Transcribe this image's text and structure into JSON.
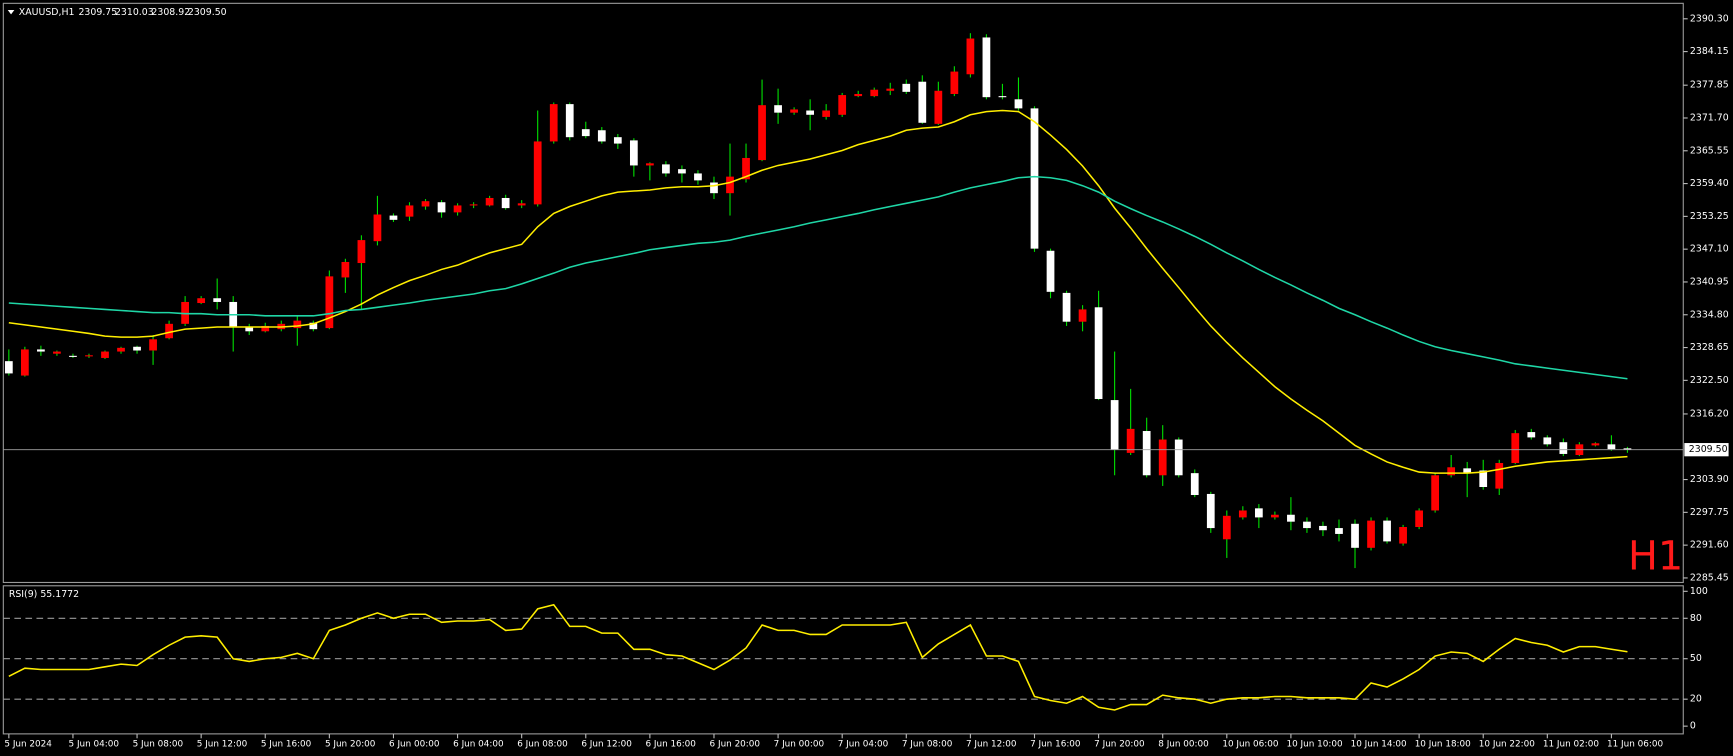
{
  "chart_data": [
    {
      "type": "candlestick",
      "title": "XAUUSD,H1",
      "header_values": [
        "2309.75",
        "2310.03",
        "2308.92",
        "2309.50"
      ],
      "badge": "H1",
      "categories": [
        "5 Jun 2024",
        null,
        null,
        null,
        "5 Jun 04:00",
        null,
        null,
        null,
        "5 Jun 08:00",
        null,
        null,
        null,
        "5 Jun 12:00",
        null,
        null,
        null,
        "5 Jun 16:00",
        null,
        null,
        null,
        "5 Jun 20:00",
        null,
        null,
        null,
        "6 Jun 00:00",
        null,
        null,
        null,
        "6 Jun 04:00",
        null,
        null,
        null,
        "6 Jun 08:00",
        null,
        null,
        null,
        "6 Jun 12:00",
        null,
        null,
        null,
        "6 Jun 16:00",
        null,
        null,
        null,
        "6 Jun 20:00",
        null,
        null,
        null,
        "7 Jun 00:00",
        null,
        null,
        null,
        "7 Jun 04:00",
        null,
        null,
        null,
        "7 Jun 08:00",
        null,
        null,
        null,
        "7 Jun 12:00",
        null,
        null,
        null,
        "7 Jun 16:00",
        null,
        null,
        null,
        "7 Jun 20:00",
        null,
        null,
        null,
        "8 Jun 00:00",
        null,
        null,
        null,
        "10 Jun 06:00",
        null,
        null,
        null,
        "10 Jun 10:00",
        null,
        null,
        null,
        "10 Jun 14:00",
        null,
        null,
        null,
        "10 Jun 18:00",
        null,
        null,
        null,
        "10 Jun 22:00",
        null,
        null,
        null,
        "11 Jun 02:00",
        null,
        null,
        null,
        "11 Jun 06:00",
        null
      ],
      "open": [
        2326.1,
        2323.4,
        2328.3,
        2327.5,
        2327.1,
        2327.1,
        2326.7,
        2327.9,
        2328.8,
        2328.1,
        2330.4,
        2333.1,
        2337.0,
        2337.9,
        2337.2,
        2332.5,
        2331.7,
        2332.1,
        2332.3,
        2333.3,
        2332.3,
        2341.8,
        2344.5,
        2348.6,
        2353.4,
        2353.2,
        2355.1,
        2355.9,
        2354.0,
        2355.3,
        2355.3,
        2356.7,
        2355.3,
        2355.5,
        2367.3,
        2374.3,
        2369.6,
        2369.4,
        2368.1,
        2367.5,
        2362.8,
        2363.0,
        2362.1,
        2361.3,
        2359.6,
        2357.6,
        2360.2,
        2363.8,
        2374.1,
        2372.7,
        2373.1,
        2371.9,
        2372.3,
        2375.8,
        2375.8,
        2376.8,
        2378.1,
        2378.5,
        2370.6,
        2376.2,
        2379.9,
        2386.8,
        2375.8,
        2375.2,
        2373.5,
        2346.8,
        2338.9,
        2333.5,
        2336.2,
        2318.8,
        2308.9,
        2313.0,
        2304.7,
        2311.4,
        2305.1,
        2301.2,
        2292.7,
        2296.8,
        2298.5,
        2296.8,
        2297.3,
        2296.0,
        2295.2,
        2294.8,
        2295.6,
        2291.1,
        2296.2,
        2291.9,
        2295.0,
        2298.1,
        2304.7,
        2306.0,
        2305.6,
        2302.2,
        2307.0,
        2312.8,
        2311.8,
        2310.9,
        2308.5,
        2310.3,
        2310.5,
        2309.75
      ],
      "high": [
        2328.3,
        2328.8,
        2329.0,
        2328.1,
        2327.5,
        2327.5,
        2328.1,
        2328.8,
        2329.0,
        2331.0,
        2333.7,
        2338.3,
        2338.3,
        2341.6,
        2338.3,
        2333.1,
        2333.3,
        2333.7,
        2334.7,
        2333.7,
        2343.1,
        2345.3,
        2349.7,
        2357.1,
        2353.8,
        2355.9,
        2356.5,
        2356.3,
        2355.7,
        2355.9,
        2357.1,
        2357.3,
        2356.3,
        2373.1,
        2374.6,
        2374.6,
        2371.0,
        2370.0,
        2368.7,
        2367.9,
        2363.4,
        2363.6,
        2362.8,
        2361.9,
        2360.7,
        2366.9,
        2366.9,
        2378.9,
        2377.2,
        2373.7,
        2375.2,
        2374.3,
        2376.4,
        2376.8,
        2377.4,
        2378.3,
        2378.9,
        2379.7,
        2378.5,
        2381.4,
        2387.6,
        2387.4,
        2378.1,
        2379.3,
        2373.9,
        2347.2,
        2339.3,
        2336.6,
        2339.3,
        2327.9,
        2320.9,
        2315.5,
        2314.1,
        2311.8,
        2305.8,
        2301.6,
        2298.1,
        2298.9,
        2299.3,
        2297.9,
        2300.6,
        2296.8,
        2296.0,
        2296.4,
        2296.4,
        2296.8,
        2296.8,
        2295.4,
        2298.5,
        2305.1,
        2308.5,
        2307.2,
        2307.6,
        2307.6,
        2313.2,
        2313.4,
        2312.2,
        2311.6,
        2310.9,
        2310.9,
        2312.2,
        2310.03
      ],
      "low": [
        2323.4,
        2323.2,
        2327.1,
        2327.1,
        2326.7,
        2326.7,
        2326.5,
        2327.5,
        2327.5,
        2325.4,
        2330.2,
        2332.7,
        2336.8,
        2335.8,
        2327.9,
        2331.0,
        2331.5,
        2331.7,
        2329.0,
        2331.7,
        2332.1,
        2338.9,
        2335.8,
        2347.8,
        2352.2,
        2352.4,
        2354.5,
        2353.0,
        2353.4,
        2354.8,
        2355.1,
        2354.5,
        2354.8,
        2355.1,
        2366.9,
        2367.5,
        2367.9,
        2366.9,
        2365.9,
        2360.7,
        2360.0,
        2360.7,
        2359.6,
        2359.2,
        2356.5,
        2353.4,
        2359.6,
        2363.6,
        2370.6,
        2372.3,
        2369.4,
        2371.4,
        2371.9,
        2375.6,
        2375.6,
        2376.0,
        2376.2,
        2370.6,
        2370.4,
        2375.8,
        2379.3,
        2375.2,
        2375.2,
        2373.1,
        2346.6,
        2337.9,
        2332.7,
        2331.7,
        2318.8,
        2304.7,
        2308.5,
        2304.3,
        2302.7,
        2304.3,
        2300.6,
        2293.9,
        2289.2,
        2296.4,
        2294.8,
        2296.4,
        2294.4,
        2293.9,
        2293.3,
        2292.3,
        2287.3,
        2290.6,
        2291.9,
        2291.5,
        2294.6,
        2297.7,
        2304.3,
        2300.6,
        2302.0,
        2301.0,
        2306.8,
        2311.4,
        2310.1,
        2308.3,
        2308.3,
        2310.1,
        2309.3,
        2308.92
      ],
      "close": [
        2323.8,
        2328.3,
        2327.9,
        2327.9,
        2326.9,
        2327.2,
        2327.9,
        2328.6,
        2328.1,
        2330.2,
        2333.1,
        2337.2,
        2337.9,
        2337.2,
        2332.5,
        2331.7,
        2332.7,
        2333.1,
        2333.7,
        2332.1,
        2342.0,
        2344.7,
        2348.8,
        2353.6,
        2352.6,
        2355.3,
        2356.1,
        2354.0,
        2355.3,
        2355.5,
        2356.7,
        2354.8,
        2355.7,
        2367.3,
        2374.3,
        2368.1,
        2368.3,
        2367.3,
        2366.9,
        2362.8,
        2363.2,
        2361.3,
        2361.3,
        2360.0,
        2357.6,
        2360.7,
        2364.2,
        2374.1,
        2372.7,
        2373.3,
        2372.3,
        2373.1,
        2376.0,
        2376.2,
        2377.0,
        2377.2,
        2376.6,
        2370.8,
        2376.8,
        2380.4,
        2386.6,
        2375.6,
        2375.6,
        2373.5,
        2347.2,
        2339.1,
        2333.5,
        2335.8,
        2319.0,
        2309.5,
        2313.4,
        2304.7,
        2311.4,
        2304.7,
        2301.0,
        2294.8,
        2297.1,
        2298.1,
        2296.8,
        2297.3,
        2296.0,
        2294.8,
        2294.4,
        2293.7,
        2291.1,
        2296.2,
        2292.3,
        2295.0,
        2298.1,
        2304.7,
        2306.2,
        2305.1,
        2302.5,
        2307.0,
        2312.6,
        2311.8,
        2310.5,
        2308.7,
        2310.5,
        2310.7,
        2309.6,
        2309.5
      ],
      "up_color": "#ff0000",
      "down_color": "#ffffff",
      "wick_color": "#00e000",
      "series": [
        {
          "color": "#ffee00",
          "values": [
            2333.3,
            2332.9,
            2332.5,
            2332.1,
            2331.7,
            2331.3,
            2330.8,
            2330.6,
            2330.6,
            2330.8,
            2331.5,
            2332.1,
            2332.3,
            2332.5,
            2332.5,
            2332.5,
            2332.5,
            2332.5,
            2332.7,
            2333.1,
            2334.2,
            2335.4,
            2336.8,
            2338.5,
            2339.9,
            2341.2,
            2342.2,
            2343.3,
            2344.1,
            2345.3,
            2346.4,
            2347.2,
            2348.0,
            2351.3,
            2353.8,
            2355.1,
            2356.1,
            2357.1,
            2357.8,
            2358.0,
            2358.2,
            2358.6,
            2358.8,
            2358.8,
            2359.0,
            2359.6,
            2360.7,
            2361.9,
            2362.8,
            2363.4,
            2364.0,
            2364.8,
            2365.6,
            2366.7,
            2367.5,
            2368.3,
            2369.4,
            2369.8,
            2370.0,
            2371.0,
            2372.3,
            2372.9,
            2373.1,
            2372.9,
            2371.0,
            2368.5,
            2365.8,
            2362.7,
            2359.0,
            2354.8,
            2351.1,
            2347.2,
            2343.5,
            2339.9,
            2336.2,
            2332.7,
            2329.6,
            2326.7,
            2324.0,
            2321.3,
            2319.0,
            2316.9,
            2314.9,
            2312.6,
            2310.3,
            2308.7,
            2307.2,
            2306.2,
            2305.3,
            2305.1,
            2305.1,
            2305.1,
            2305.3,
            2305.8,
            2306.4,
            2306.8,
            2307.2,
            2307.4,
            2307.6,
            2307.8,
            2308.0,
            2308.2
          ]
        },
        {
          "color": "#1fd6a6",
          "values": [
            2337.0,
            2336.8,
            2336.6,
            2336.4,
            2336.2,
            2336.0,
            2335.8,
            2335.6,
            2335.4,
            2335.2,
            2335.2,
            2335.0,
            2335.0,
            2334.8,
            2334.8,
            2334.8,
            2334.6,
            2334.6,
            2334.6,
            2334.6,
            2335.0,
            2335.6,
            2335.8,
            2336.2,
            2336.6,
            2337.0,
            2337.5,
            2337.9,
            2338.3,
            2338.7,
            2339.3,
            2339.7,
            2340.6,
            2341.6,
            2342.6,
            2343.7,
            2344.5,
            2345.1,
            2345.7,
            2346.3,
            2347.0,
            2347.4,
            2347.8,
            2348.2,
            2348.4,
            2348.8,
            2349.5,
            2350.1,
            2350.7,
            2351.3,
            2352.0,
            2352.6,
            2353.2,
            2353.8,
            2354.5,
            2355.1,
            2355.7,
            2356.3,
            2356.9,
            2357.8,
            2358.6,
            2359.2,
            2359.8,
            2360.5,
            2360.7,
            2360.5,
            2360.0,
            2359.0,
            2357.8,
            2356.1,
            2354.7,
            2353.4,
            2352.2,
            2350.9,
            2349.5,
            2348.0,
            2346.4,
            2344.9,
            2343.3,
            2341.8,
            2340.4,
            2338.9,
            2337.5,
            2336.0,
            2334.8,
            2333.5,
            2332.3,
            2331.0,
            2329.8,
            2328.8,
            2328.1,
            2327.5,
            2326.9,
            2326.3,
            2325.6,
            2325.2,
            2324.8,
            2324.4,
            2324.0,
            2323.6,
            2323.2,
            2322.8
          ]
        }
      ],
      "bid": {
        "value": 2309.5,
        "label": "2309.50"
      },
      "ylim": [
        2284.6,
        2393.2
      ],
      "yticks": [
        2285.45,
        {
          "value": 2291.6,
          "label": "2291.60"
        },
        2297.75,
        {
          "value": 2303.9,
          "label": "2303.90"
        },
        {
          "value": 2316.2,
          "label": "2316.20"
        },
        {
          "value": 2322.5,
          "label": "2322.50"
        },
        2328.65,
        {
          "value": 2334.8,
          "label": "2334.80"
        },
        2340.95,
        {
          "value": 2347.1,
          "label": "2347.10"
        },
        2353.25,
        {
          "value": 2359.4,
          "label": "2359.40"
        },
        2365.55,
        {
          "value": 2371.7,
          "label": "2371.70"
        },
        2377.85,
        2384.15,
        {
          "value": 2390.3,
          "label": "2390.30"
        }
      ],
      "grid": false
    },
    {
      "type": "line",
      "title": "RSI(9) 55.1772",
      "color": "#ffee00",
      "values": [
        37,
        43,
        42,
        42,
        42,
        42,
        44,
        46,
        45,
        53,
        60,
        66,
        67,
        66,
        50,
        48,
        50,
        51,
        54,
        50,
        71,
        75,
        80,
        84,
        80,
        83,
        83,
        77,
        78,
        78,
        79,
        71,
        72,
        87,
        90,
        74,
        74,
        69,
        69,
        57,
        57,
        53,
        52,
        47,
        42,
        49,
        58,
        75,
        71,
        71,
        68,
        68,
        75,
        75,
        75,
        75,
        77,
        51,
        61,
        68,
        75,
        52,
        52,
        48,
        22,
        19,
        17,
        22,
        14,
        12,
        16,
        16,
        23,
        21,
        20,
        17,
        20,
        21,
        21,
        22,
        22,
        21,
        21,
        21,
        20,
        32,
        29,
        35,
        42,
        52,
        55,
        54,
        48,
        57,
        65,
        62,
        60,
        55,
        59,
        59,
        57,
        55.1772
      ],
      "ylim": [
        0,
        100
      ],
      "yticks": [
        0,
        20,
        50,
        80,
        100
      ],
      "grid": true
    }
  ]
}
